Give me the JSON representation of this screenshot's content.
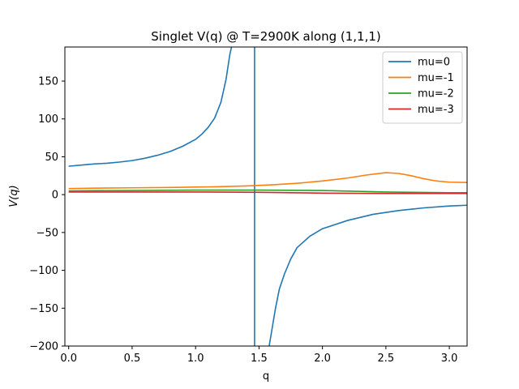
{
  "chart_data": {
    "type": "line",
    "title": "Singlet V(q) @ T=2900K along (1,1,1)",
    "xlabel": "q",
    "ylabel": "V(q)",
    "xlim": [
      -0.03,
      3.14
    ],
    "ylim": [
      -200,
      195
    ],
    "xticks": [
      0.0,
      0.5,
      1.0,
      1.5,
      2.0,
      2.5,
      3.0
    ],
    "xtick_labels": [
      "0.0",
      "0.5",
      "1.0",
      "1.5",
      "2.0",
      "2.5",
      "3.0"
    ],
    "yticks": [
      -200,
      -150,
      -100,
      -50,
      0,
      50,
      100,
      150
    ],
    "ytick_labels": [
      "−200",
      "−150",
      "−100",
      "−50",
      "0",
      "50",
      "100",
      "150"
    ],
    "grid": false,
    "legend_position": "top-right",
    "series": [
      {
        "name": "mu=0",
        "color": "#1f77b4",
        "segments": [
          [
            [
              0.0,
              37.5
            ],
            [
              0.1,
              39
            ],
            [
              0.2,
              40.5
            ],
            [
              0.3,
              41.5
            ],
            [
              0.4,
              43
            ],
            [
              0.5,
              45
            ],
            [
              0.6,
              48
            ],
            [
              0.7,
              52
            ],
            [
              0.8,
              57
            ],
            [
              0.9,
              64
            ],
            [
              1.0,
              73
            ],
            [
              1.05,
              80
            ],
            [
              1.1,
              89
            ],
            [
              1.15,
              101
            ],
            [
              1.2,
              122
            ],
            [
              1.24,
              152
            ],
            [
              1.27,
              185
            ],
            [
              1.29,
              200
            ]
          ],
          [
            [
              1.465,
              200
            ],
            [
              1.465,
              -200
            ]
          ],
          [
            [
              1.58,
              -200
            ],
            [
              1.6,
              -180
            ],
            [
              1.63,
              -150
            ],
            [
              1.66,
              -125
            ],
            [
              1.7,
              -105
            ],
            [
              1.75,
              -85
            ],
            [
              1.8,
              -70
            ],
            [
              1.9,
              -55
            ],
            [
              2.0,
              -45
            ],
            [
              2.2,
              -34
            ],
            [
              2.4,
              -26
            ],
            [
              2.6,
              -21
            ],
            [
              2.8,
              -17.5
            ],
            [
              3.0,
              -15
            ],
            [
              3.14,
              -14
            ]
          ]
        ]
      },
      {
        "name": "mu=-1",
        "color": "#ff7f0e",
        "segments": [
          [
            [
              0.0,
              8
            ],
            [
              0.2,
              8.5
            ],
            [
              0.5,
              9
            ],
            [
              0.8,
              9.5
            ],
            [
              1.0,
              10
            ],
            [
              1.2,
              10.5
            ],
            [
              1.4,
              11.5
            ],
            [
              1.6,
              13
            ],
            [
              1.8,
              15
            ],
            [
              2.0,
              18
            ],
            [
              2.2,
              22
            ],
            [
              2.35,
              26
            ],
            [
              2.5,
              29
            ],
            [
              2.6,
              28
            ],
            [
              2.7,
              25
            ],
            [
              2.8,
              21
            ],
            [
              2.9,
              18
            ],
            [
              3.0,
              16.5
            ],
            [
              3.14,
              16
            ]
          ]
        ]
      },
      {
        "name": "mu=-2",
        "color": "#2ca02c",
        "segments": [
          [
            [
              0.0,
              5
            ],
            [
              0.5,
              5.5
            ],
            [
              1.0,
              6
            ],
            [
              1.5,
              6
            ],
            [
              2.0,
              5.5
            ],
            [
              2.5,
              3.5
            ],
            [
              3.0,
              2.5
            ],
            [
              3.14,
              2.5
            ]
          ]
        ]
      },
      {
        "name": "mu=-3",
        "color": "#d62728",
        "segments": [
          [
            [
              0.0,
              3.5
            ],
            [
              0.5,
              3.5
            ],
            [
              1.0,
              3.5
            ],
            [
              1.5,
              3
            ],
            [
              2.0,
              2
            ],
            [
              2.5,
              1.5
            ],
            [
              3.0,
              1.5
            ],
            [
              3.14,
              1.5
            ]
          ]
        ]
      }
    ]
  }
}
